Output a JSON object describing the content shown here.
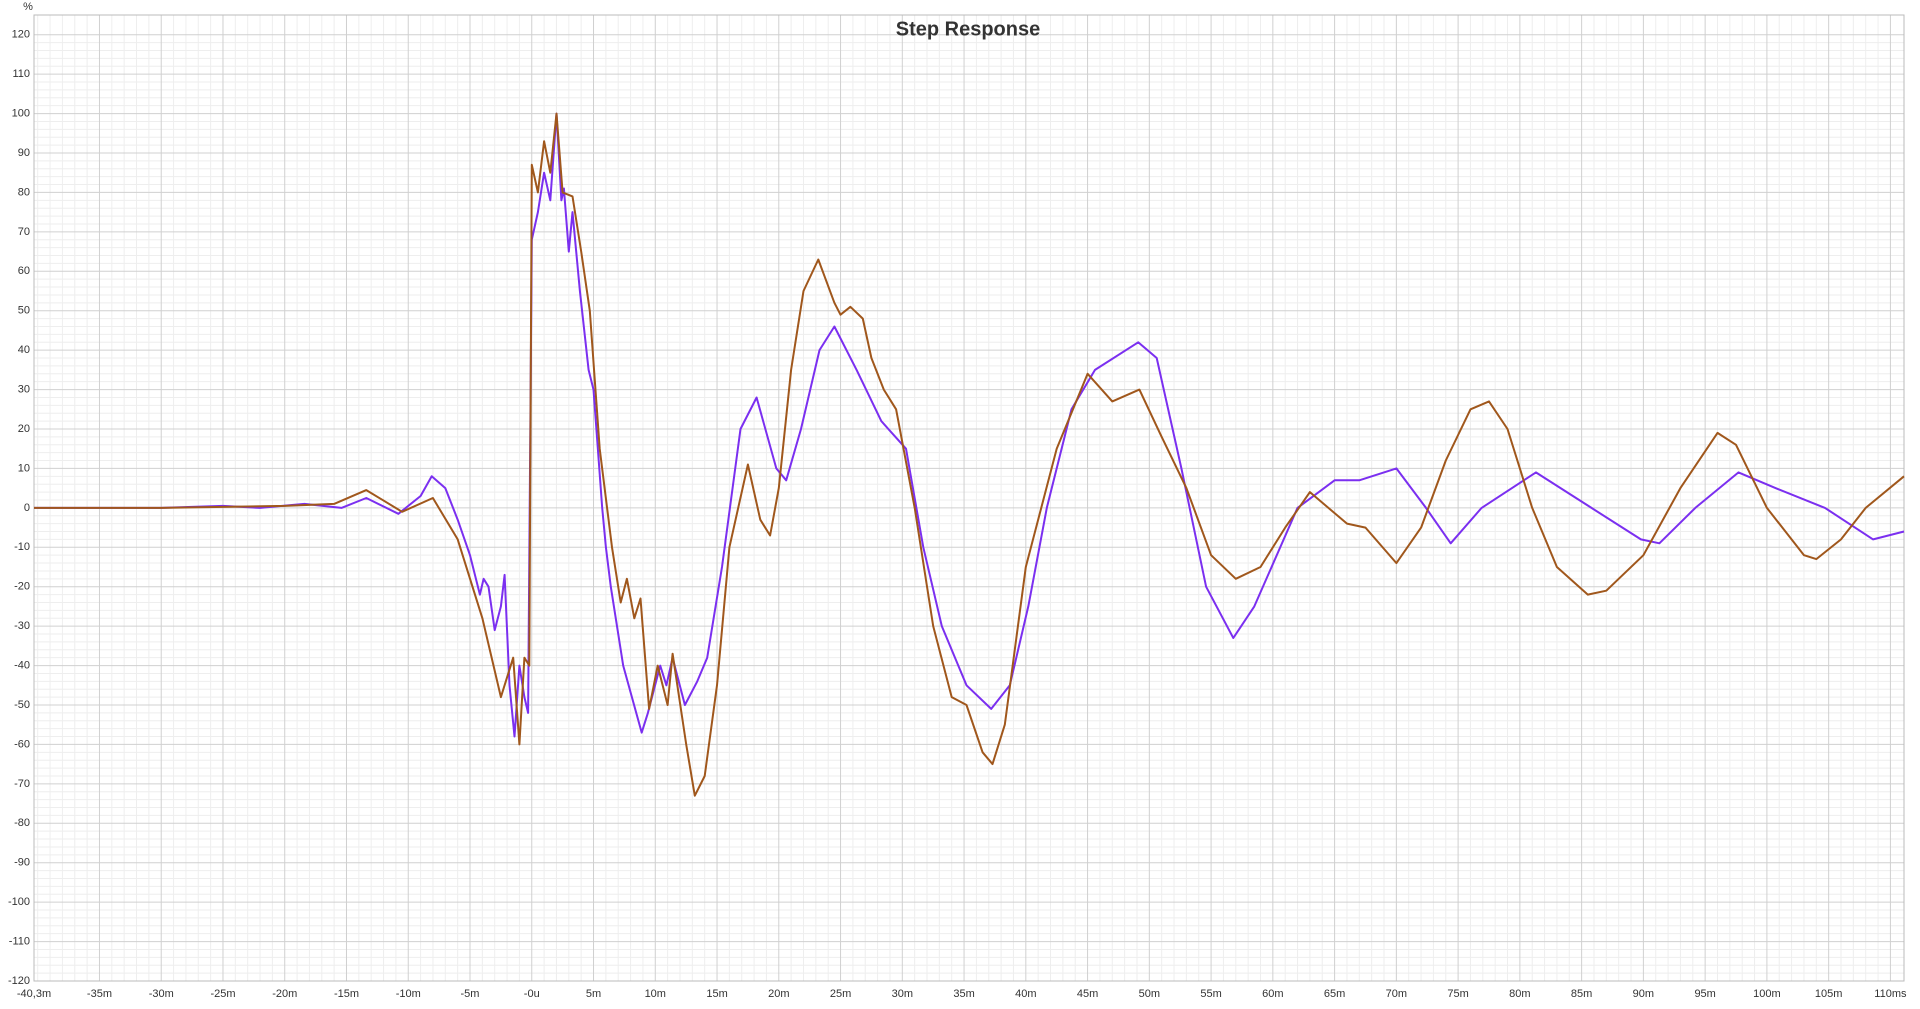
{
  "chart_data": {
    "type": "line",
    "title": "Step Response",
    "y_label": "%",
    "xlim": [
      -40.3,
      111.1
    ],
    "ylim": [
      -120,
      125
    ],
    "xticks": [
      {
        "value": -40.3,
        "label": "-40,3m"
      },
      {
        "value": -35,
        "label": "-35m"
      },
      {
        "value": -30,
        "label": "-30m"
      },
      {
        "value": -25,
        "label": "-25m"
      },
      {
        "value": -20,
        "label": "-20m"
      },
      {
        "value": -15,
        "label": "-15m"
      },
      {
        "value": -10,
        "label": "-10m"
      },
      {
        "value": -5,
        "label": "-5m"
      },
      {
        "value": 0,
        "label": "-0u"
      },
      {
        "value": 5,
        "label": "5m"
      },
      {
        "value": 10,
        "label": "10m"
      },
      {
        "value": 15,
        "label": "15m"
      },
      {
        "value": 20,
        "label": "20m"
      },
      {
        "value": 25,
        "label": "25m"
      },
      {
        "value": 30,
        "label": "30m"
      },
      {
        "value": 35,
        "label": "35m"
      },
      {
        "value": 40,
        "label": "40m"
      },
      {
        "value": 45,
        "label": "45m"
      },
      {
        "value": 50,
        "label": "50m"
      },
      {
        "value": 55,
        "label": "55m"
      },
      {
        "value": 60,
        "label": "60m"
      },
      {
        "value": 65,
        "label": "65m"
      },
      {
        "value": 70,
        "label": "70m"
      },
      {
        "value": 75,
        "label": "75m"
      },
      {
        "value": 80,
        "label": "80m"
      },
      {
        "value": 85,
        "label": "85m"
      },
      {
        "value": 90,
        "label": "90m"
      },
      {
        "value": 95,
        "label": "95m"
      },
      {
        "value": 100,
        "label": "100m"
      },
      {
        "value": 105,
        "label": "105m"
      },
      {
        "value": 110,
        "label": "110ms"
      }
    ],
    "yticks": [
      -120,
      -110,
      -100,
      -90,
      -80,
      -70,
      -60,
      -50,
      -40,
      -30,
      -20,
      -10,
      0,
      10,
      20,
      30,
      40,
      50,
      60,
      70,
      80,
      90,
      100,
      110,
      120
    ],
    "grid": true,
    "series": [
      {
        "color": "#7b2ff0",
        "x": [
          -40.3,
          -30,
          -25,
          -22,
          -18.4,
          -15.4,
          -13.4,
          -10.8,
          -9,
          -8.1,
          -7,
          -6,
          -5,
          -4.2,
          -3.9,
          -3.5,
          -3,
          -2.5,
          -2.2,
          -1.8,
          -1.4,
          -1,
          -0.6,
          -0.3,
          0,
          0.5,
          1,
          1.5,
          2,
          2.4,
          2.6,
          3,
          3.3,
          3.9,
          4.6,
          5,
          5.7,
          6,
          6.4,
          7.4,
          8.9,
          9.4,
          10.4,
          10.9,
          11.4,
          12.4,
          13.4,
          14.2,
          15.4,
          16.9,
          18.2,
          19.8,
          20.6,
          21.8,
          23.3,
          24.5,
          26.3,
          28.3,
          30.3,
          31.7,
          33.2,
          35.2,
          37.2,
          38.7,
          40.2,
          41.7,
          43.7,
          45.6,
          49.1,
          50.6,
          52.6,
          54.6,
          56.8,
          58.5,
          62,
          65,
          67,
          70,
          72.4,
          74.4,
          76.9,
          81.3,
          85.8,
          89.8,
          91.3,
          94.2,
          97.7,
          100.7,
          104.7,
          108.6,
          111.1
        ],
        "values": [
          0,
          0,
          0.5,
          0,
          1,
          0,
          2.5,
          -1.5,
          3,
          8,
          5,
          -3,
          -12,
          -22,
          -18,
          -20,
          -31,
          -25,
          -17,
          -45,
          -58,
          -40,
          -48,
          -52,
          68,
          75,
          85,
          78,
          100,
          78,
          81,
          65,
          75,
          55,
          35,
          30,
          0,
          -10,
          -20,
          -40,
          -57,
          -52,
          -40,
          -45,
          -38,
          -50,
          -44,
          -38,
          -15,
          20,
          28,
          10,
          7,
          20,
          40,
          46,
          35,
          22,
          15,
          -10,
          -30,
          -45,
          -51,
          -45,
          -25,
          0,
          25,
          35,
          42,
          38,
          10,
          -20,
          -33,
          -25,
          0,
          7,
          7,
          10,
          0,
          -9,
          0,
          9,
          0,
          -8,
          -9,
          0,
          9,
          5,
          0,
          -8,
          -6
        ]
      },
      {
        "color": "#a0571c",
        "x": [
          -40.3,
          -30,
          -20,
          -16,
          -13.4,
          -10.5,
          -8,
          -6,
          -4,
          -2.5,
          -1.5,
          -1,
          -0.6,
          -0.2,
          0,
          0.5,
          1,
          1.5,
          2,
          2.5,
          3.3,
          4,
          4.7,
          5.5,
          6.5,
          7.2,
          7.7,
          8.3,
          8.8,
          9.5,
          10.2,
          11,
          11.4,
          12.5,
          13.2,
          14,
          15,
          16,
          17.5,
          18.5,
          19.3,
          20,
          21,
          22,
          23.2,
          24.5,
          25,
          25.8,
          26.8,
          27.5,
          28.5,
          29.5,
          31,
          32.5,
          34,
          35.2,
          36.5,
          37.3,
          38.3,
          40,
          42.5,
          45,
          47,
          49.2,
          51,
          53,
          55,
          57,
          59,
          61,
          63,
          64.5,
          66,
          67.5,
          70,
          72,
          74,
          76,
          77.5,
          79,
          81,
          83,
          85.5,
          87,
          90,
          93,
          96,
          97.5,
          100,
          103,
          104,
          106,
          108,
          111.1
        ],
        "values": [
          0,
          0,
          0.5,
          1,
          4.5,
          -1,
          2.5,
          -8,
          -28,
          -48,
          -38,
          -60,
          -38,
          -40,
          87,
          80,
          93,
          85,
          100,
          80,
          79,
          65,
          50,
          15,
          -10,
          -24,
          -18,
          -28,
          -23,
          -51,
          -40,
          -50,
          -37,
          -60,
          -73,
          -68,
          -45,
          -10,
          11,
          -3,
          -7,
          5,
          35,
          55,
          63,
          52,
          49,
          51,
          48,
          38,
          30,
          25,
          0,
          -30,
          -48,
          -50,
          -62,
          -65,
          -55,
          -15,
          15,
          34,
          27,
          30,
          18,
          5,
          -12,
          -18,
          -15,
          -5,
          4,
          0,
          -4,
          -5,
          -14,
          -5,
          12,
          25,
          27,
          20,
          0,
          -15,
          -22,
          -21,
          -12,
          5,
          19,
          16,
          0,
          -12,
          -13,
          -8,
          0,
          8
        ]
      }
    ]
  }
}
